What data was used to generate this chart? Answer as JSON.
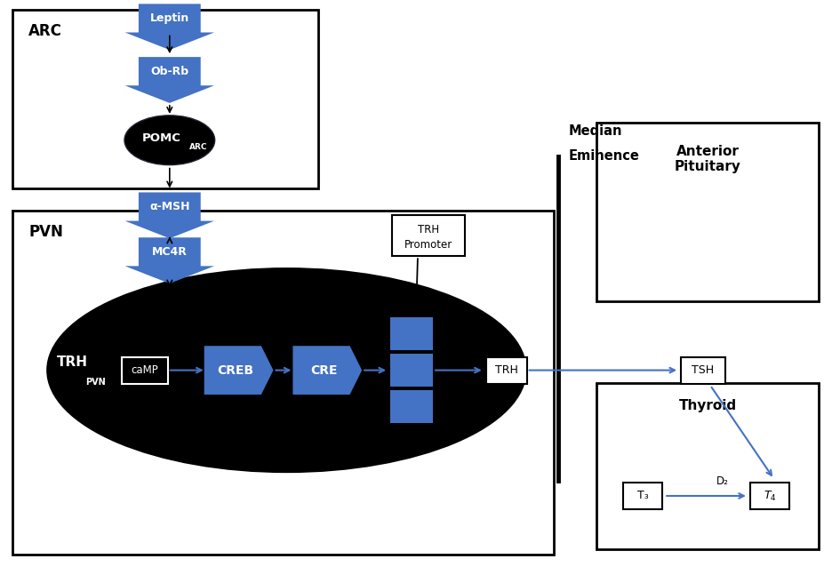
{
  "bg_color": "#ffffff",
  "blue": "#4472C4",
  "black": "#000000",
  "figsize": [
    9.36,
    6.47
  ],
  "dpi": 100,
  "xlim": [
    0,
    9.36
  ],
  "ylim": [
    0,
    6.47
  ]
}
